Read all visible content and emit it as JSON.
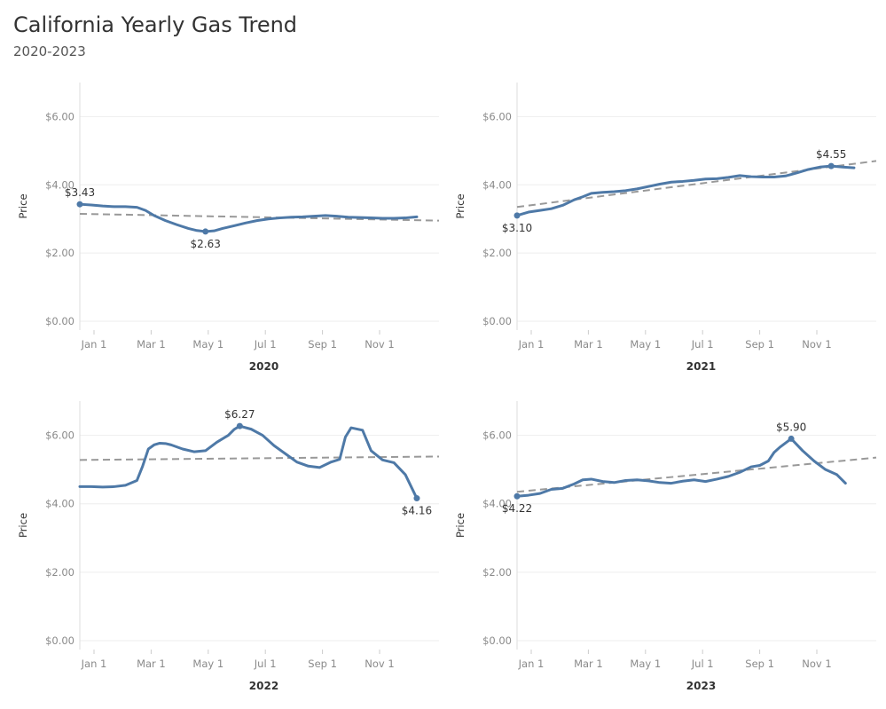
{
  "header": {
    "title": "California Yearly Gas Trend",
    "subtitle": "2020-2023"
  },
  "colors": {
    "line": "#4e79a7",
    "trend": "#999999",
    "grid": "#eeeeee",
    "axis": "#dddddd",
    "tick_text": "#8a8a8a"
  },
  "chart_data": [
    {
      "type": "line",
      "year_label": "2020",
      "xlabel": "2020",
      "ylabel": "Price",
      "ylim": [
        0,
        7
      ],
      "y_ticks": [
        0,
        2,
        4,
        6
      ],
      "y_tick_labels": [
        "$0.00",
        "$2.00",
        "$4.00",
        "$6.00"
      ],
      "x_ticks": [
        "Jan 1",
        "Mar 1",
        "May 1",
        "Jul 1",
        "Sep 1",
        "Nov 1"
      ],
      "x_tick_months": [
        0,
        2,
        4,
        6,
        8,
        10
      ],
      "series": [
        {
          "x_months": [
            0.0,
            0.4,
            0.8,
            1.2,
            1.6,
            2.0,
            2.3,
            2.6,
            3.0,
            3.4,
            3.8,
            4.1,
            4.4,
            4.7,
            5.0,
            5.4,
            5.8,
            6.2,
            6.6,
            7.0,
            7.4,
            7.8,
            8.2,
            8.6,
            9.0,
            9.4,
            9.8,
            10.2,
            10.6,
            11.0,
            11.4,
            11.8
          ],
          "values": [
            3.43,
            3.41,
            3.38,
            3.36,
            3.36,
            3.34,
            3.25,
            3.1,
            2.95,
            2.83,
            2.72,
            2.66,
            2.63,
            2.65,
            2.72,
            2.8,
            2.88,
            2.95,
            3.0,
            3.03,
            3.05,
            3.06,
            3.08,
            3.1,
            3.08,
            3.05,
            3.04,
            3.03,
            3.02,
            3.02,
            3.03,
            3.06
          ]
        }
      ],
      "trend": [
        3.15,
        2.95
      ],
      "annotations": [
        {
          "label": "$3.43",
          "x_month": 0.0,
          "value": 3.43,
          "pos": "above"
        },
        {
          "label": "$2.63",
          "x_month": 4.4,
          "value": 2.63,
          "pos": "below"
        }
      ]
    },
    {
      "type": "line",
      "year_label": "2021",
      "xlabel": "2021",
      "ylabel": "Price",
      "ylim": [
        0,
        7
      ],
      "y_ticks": [
        0,
        2,
        4,
        6
      ],
      "y_tick_labels": [
        "$0.00",
        "$2.00",
        "$4.00",
        "$6.00"
      ],
      "x_ticks": [
        "Jan 1",
        "Mar 1",
        "May 1",
        "Jul 1",
        "Sep 1",
        "Nov 1"
      ],
      "x_tick_months": [
        0,
        2,
        4,
        6,
        8,
        10
      ],
      "series": [
        {
          "x_months": [
            0.0,
            0.4,
            0.8,
            1.2,
            1.6,
            2.0,
            2.3,
            2.6,
            3.0,
            3.4,
            3.8,
            4.2,
            4.6,
            5.0,
            5.4,
            5.8,
            6.2,
            6.6,
            7.0,
            7.4,
            7.8,
            8.2,
            8.6,
            9.0,
            9.4,
            9.8,
            10.2,
            10.6,
            11.0,
            11.4,
            11.8
          ],
          "values": [
            3.1,
            3.2,
            3.25,
            3.3,
            3.4,
            3.56,
            3.65,
            3.75,
            3.78,
            3.8,
            3.83,
            3.88,
            3.95,
            4.02,
            4.08,
            4.1,
            4.13,
            4.17,
            4.18,
            4.22,
            4.27,
            4.24,
            4.23,
            4.23,
            4.26,
            4.35,
            4.45,
            4.52,
            4.55,
            4.52,
            4.5
          ]
        }
      ],
      "trend": [
        3.35,
        4.7
      ],
      "annotations": [
        {
          "label": "$3.10",
          "x_month": 0.0,
          "value": 3.1,
          "pos": "below"
        },
        {
          "label": "$4.55",
          "x_month": 11.0,
          "value": 4.55,
          "pos": "above"
        }
      ]
    },
    {
      "type": "line",
      "year_label": "2022",
      "xlabel": "2022",
      "ylabel": "Price",
      "ylim": [
        0,
        7
      ],
      "y_ticks": [
        0,
        2,
        4,
        6
      ],
      "y_tick_labels": [
        "$0.00",
        "$2.00",
        "$4.00",
        "$6.00"
      ],
      "x_ticks": [
        "Jan 1",
        "Mar 1",
        "May 1",
        "Jul 1",
        "Sep 1",
        "Nov 1"
      ],
      "x_tick_months": [
        0,
        2,
        4,
        6,
        8,
        10
      ],
      "series": [
        {
          "x_months": [
            0.0,
            0.4,
            0.8,
            1.2,
            1.6,
            2.0,
            2.2,
            2.4,
            2.6,
            2.8,
            3.0,
            3.2,
            3.6,
            4.0,
            4.4,
            4.8,
            5.2,
            5.4,
            5.6,
            6.0,
            6.4,
            6.8,
            7.2,
            7.6,
            8.0,
            8.4,
            8.8,
            9.1,
            9.3,
            9.5,
            9.9,
            10.2,
            10.6,
            11.0,
            11.4,
            11.8
          ],
          "values": [
            4.5,
            4.5,
            4.49,
            4.5,
            4.54,
            4.68,
            5.1,
            5.6,
            5.72,
            5.77,
            5.76,
            5.72,
            5.6,
            5.52,
            5.55,
            5.8,
            6.0,
            6.17,
            6.27,
            6.18,
            6.0,
            5.7,
            5.46,
            5.22,
            5.1,
            5.06,
            5.22,
            5.3,
            5.95,
            6.22,
            6.15,
            5.55,
            5.28,
            5.2,
            4.85,
            4.16
          ]
        }
      ],
      "trend": [
        5.28,
        5.38
      ],
      "annotations": [
        {
          "label": "$6.27",
          "x_month": 5.6,
          "value": 6.27,
          "pos": "above"
        },
        {
          "label": "$4.16",
          "x_month": 11.8,
          "value": 4.16,
          "pos": "below"
        }
      ]
    },
    {
      "type": "line",
      "year_label": "2023",
      "xlabel": "2023",
      "ylabel": "Price",
      "ylim": [
        0,
        7
      ],
      "y_ticks": [
        0,
        2,
        4,
        6
      ],
      "y_tick_labels": [
        "$0.00",
        "$2.00",
        "$4.00",
        "$6.00"
      ],
      "x_ticks": [
        "Jan 1",
        "Mar 1",
        "May 1",
        "Jul 1",
        "Sep 1",
        "Nov 1"
      ],
      "x_tick_months": [
        0,
        2,
        4,
        6,
        8,
        10
      ],
      "series": [
        {
          "x_months": [
            0.0,
            0.4,
            0.8,
            1.2,
            1.6,
            2.0,
            2.3,
            2.6,
            3.0,
            3.4,
            3.8,
            4.2,
            4.6,
            5.0,
            5.4,
            5.8,
            6.2,
            6.6,
            7.0,
            7.4,
            7.8,
            8.2,
            8.5,
            8.8,
            9.0,
            9.2,
            9.6,
            10.0,
            10.4,
            10.8,
            11.2,
            11.5
          ],
          "values": [
            4.22,
            4.25,
            4.3,
            4.42,
            4.45,
            4.58,
            4.7,
            4.72,
            4.65,
            4.62,
            4.68,
            4.7,
            4.67,
            4.62,
            4.6,
            4.66,
            4.7,
            4.65,
            4.72,
            4.8,
            4.92,
            5.08,
            5.12,
            5.25,
            5.5,
            5.65,
            5.9,
            5.55,
            5.25,
            5.0,
            4.85,
            4.6
          ]
        }
      ],
      "trend": [
        4.35,
        5.35
      ],
      "annotations": [
        {
          "label": "$4.22",
          "x_month": 0.0,
          "value": 4.22,
          "pos": "below"
        },
        {
          "label": "$5.90",
          "x_month": 9.6,
          "value": 5.9,
          "pos": "above"
        }
      ]
    }
  ]
}
